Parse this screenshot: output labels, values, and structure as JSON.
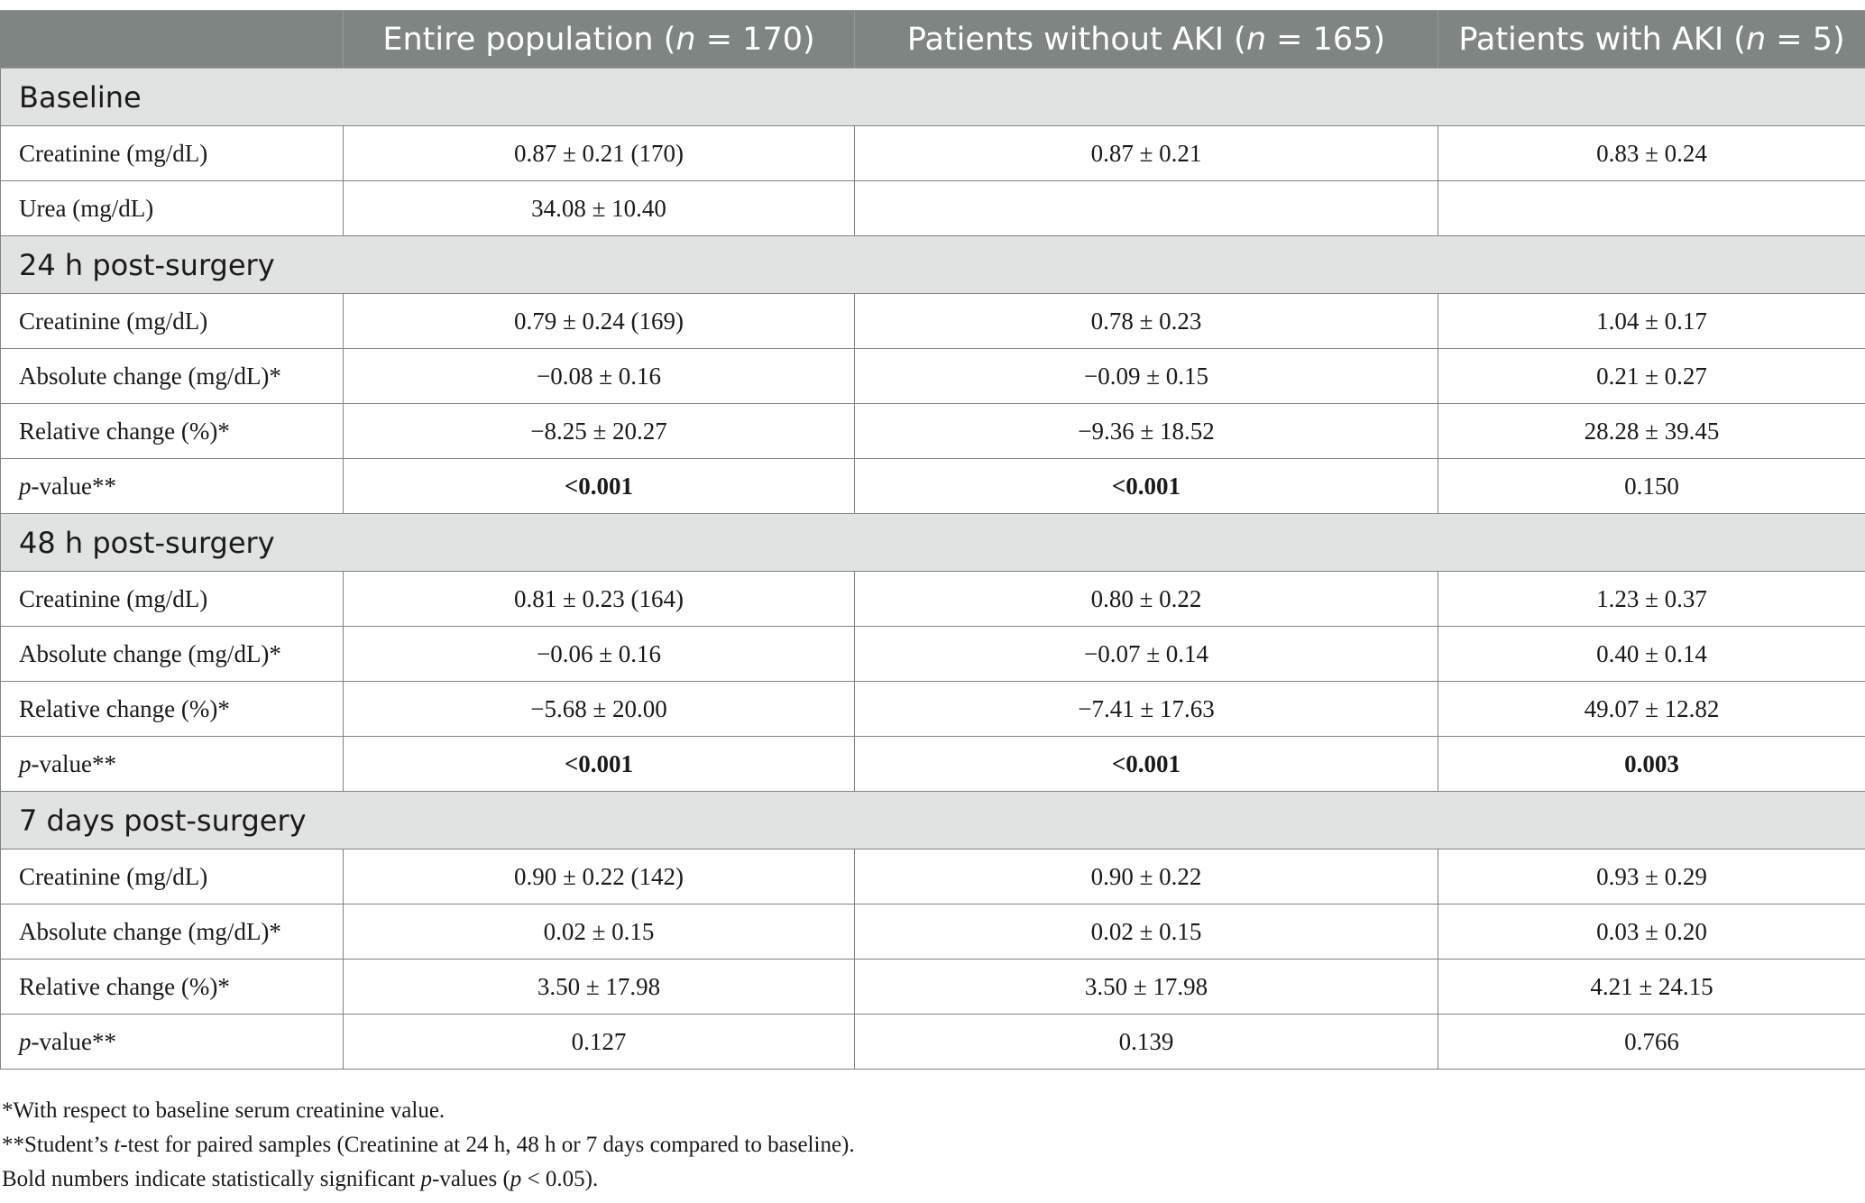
{
  "header": {
    "col0": "",
    "col1": {
      "prefix": "Entire population (",
      "n": "n",
      "suffix": " = 170)"
    },
    "col2": {
      "prefix": "Patients without AKI (",
      "n": "n",
      "suffix": " = 165)"
    },
    "col3": {
      "prefix": "Patients with AKI (",
      "n": "n",
      "suffix": " = 5)"
    }
  },
  "sections": [
    {
      "title": "Baseline",
      "rows": [
        {
          "label": "Creatinine (mg/dL)",
          "values": [
            "0.87 ± 0.21 (170)",
            "0.87 ± 0.21",
            "0.83 ± 0.24"
          ],
          "bold": [
            false,
            false,
            false
          ]
        },
        {
          "label": "Urea (mg/dL)",
          "values": [
            "34.08 ± 10.40",
            "",
            ""
          ],
          "bold": [
            false,
            false,
            false
          ]
        }
      ]
    },
    {
      "title": "24 h post-surgery",
      "rows": [
        {
          "label": "Creatinine (mg/dL)",
          "values": [
            "0.79 ± 0.24 (169)",
            "0.78 ± 0.23",
            "1.04 ± 0.17"
          ],
          "bold": [
            false,
            false,
            false
          ]
        },
        {
          "label": "Absolute change (mg/dL)*",
          "values": [
            "−0.08 ± 0.16",
            "−0.09 ± 0.15",
            "0.21 ± 0.27"
          ],
          "bold": [
            false,
            false,
            false
          ]
        },
        {
          "label": "Relative change (%)*",
          "values": [
            "−8.25 ± 20.27",
            "−9.36 ± 18.52",
            "28.28 ± 39.45"
          ],
          "bold": [
            false,
            false,
            false
          ]
        },
        {
          "label_italic": "p",
          "label": "-value**",
          "values": [
            "<0.001",
            "<0.001",
            "0.150"
          ],
          "bold": [
            true,
            true,
            false
          ]
        }
      ]
    },
    {
      "title": "48 h post-surgery",
      "rows": [
        {
          "label": "Creatinine (mg/dL)",
          "values": [
            "0.81 ± 0.23 (164)",
            "0.80 ± 0.22",
            "1.23 ± 0.37"
          ],
          "bold": [
            false,
            false,
            false
          ]
        },
        {
          "label": "Absolute change (mg/dL)*",
          "values": [
            "−0.06 ± 0.16",
            "−0.07 ± 0.14",
            "0.40 ± 0.14"
          ],
          "bold": [
            false,
            false,
            false
          ]
        },
        {
          "label": "Relative change (%)*",
          "values": [
            "−5.68 ± 20.00",
            "−7.41 ± 17.63",
            "49.07 ± 12.82"
          ],
          "bold": [
            false,
            false,
            false
          ]
        },
        {
          "label_italic": "p",
          "label": "-value**",
          "values": [
            "<0.001",
            "<0.001",
            "0.003"
          ],
          "bold": [
            true,
            true,
            true
          ]
        }
      ]
    },
    {
      "title": "7 days post-surgery",
      "rows": [
        {
          "label": "Creatinine (mg/dL)",
          "values": [
            "0.90 ± 0.22 (142)",
            "0.90 ± 0.22",
            "0.93 ± 0.29"
          ],
          "bold": [
            false,
            false,
            false
          ]
        },
        {
          "label": "Absolute change (mg/dL)*",
          "values": [
            "0.02 ± 0.15",
            "0.02 ± 0.15",
            "0.03 ± 0.20"
          ],
          "bold": [
            false,
            false,
            false
          ]
        },
        {
          "label": "Relative change (%)*",
          "values": [
            "3.50 ± 17.98",
            "3.50 ± 17.98",
            "4.21 ± 24.15"
          ],
          "bold": [
            false,
            false,
            false
          ]
        },
        {
          "label_italic": "p",
          "label": "-value**",
          "values": [
            "0.127",
            "0.139",
            "0.766"
          ],
          "bold": [
            false,
            false,
            false
          ]
        }
      ]
    }
  ],
  "footnotes": {
    "f1": "*With respect to baseline serum creatinine value.",
    "f2": {
      "a": "**Student’s ",
      "i": "t",
      "b": "-test for paired samples (Creatinine at 24 h, 48 h or 7 days compared to baseline)."
    },
    "f3": {
      "a": "Bold numbers indicate statistically significant ",
      "i1": "p",
      "b": "-values (",
      "i2": "p",
      "c": " < 0.05)."
    }
  },
  "colors": {
    "header_bg": "#7f8583",
    "section_bg": "#e1e2e2",
    "border": "#7f8583",
    "text": "#1a1a1a"
  }
}
